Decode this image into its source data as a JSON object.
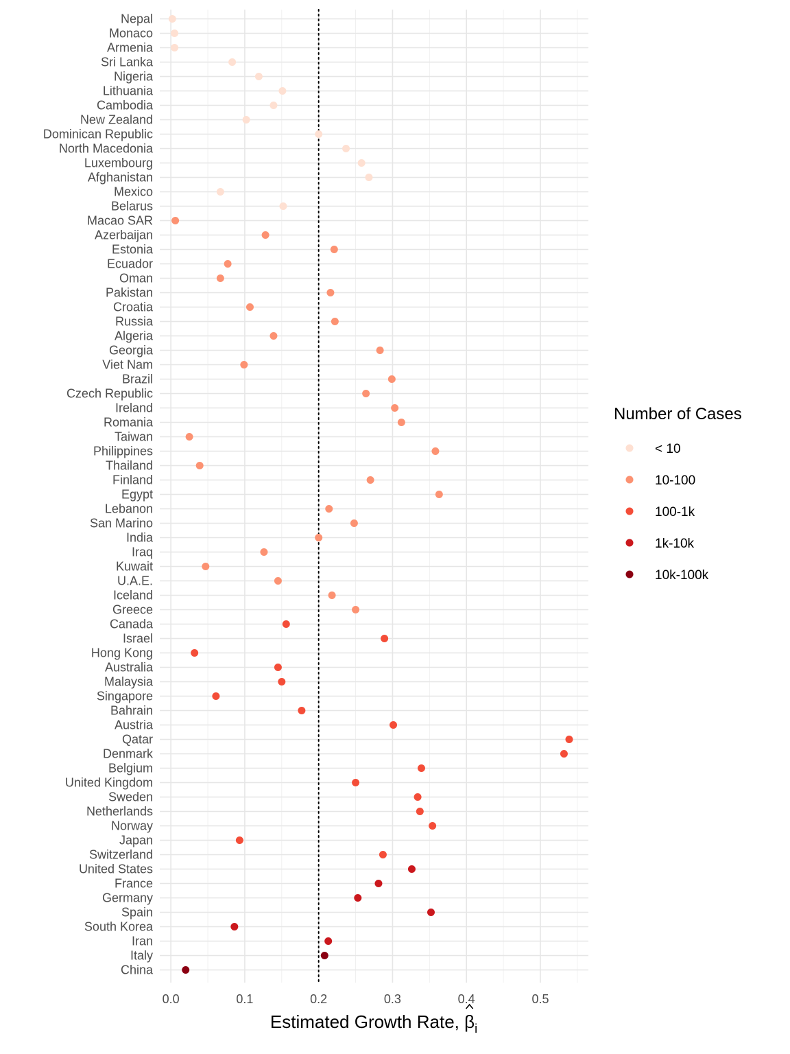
{
  "chart_data": {
    "type": "scatter",
    "xlabel": "Estimated Growth Rate, β̂i",
    "xlabel_main": "Estimated Growth Rate, ",
    "xlabel_symbol": "β",
    "xlabel_subscript": "i",
    "xlim": [
      -0.015,
      0.565
    ],
    "xticks": [
      0.0,
      0.1,
      0.2,
      0.3,
      0.4,
      0.5
    ],
    "xtick_labels": [
      "0.0",
      "0.1",
      "0.2",
      "0.3",
      "0.4",
      "0.5"
    ],
    "reference_line_x": 0.2,
    "reference_line_style": "dotted",
    "grid": true,
    "legend": {
      "title": "Number of Cases",
      "placement": "right",
      "entries": [
        {
          "label": "< 10",
          "color": "#fee0d2"
        },
        {
          "label": "10-100",
          "color": "#fc9272"
        },
        {
          "label": "100-1k",
          "color": "#f44d38"
        },
        {
          "label": "1k-10k",
          "color": "#cb181d"
        },
        {
          "label": "10k-100k",
          "color": "#8b0012"
        }
      ]
    },
    "points": [
      {
        "country": "Nepal",
        "x": 0.002,
        "cases": "< 10"
      },
      {
        "country": "Monaco",
        "x": 0.005,
        "cases": "< 10"
      },
      {
        "country": "Armenia",
        "x": 0.005,
        "cases": "< 10"
      },
      {
        "country": "Sri Lanka",
        "x": 0.083,
        "cases": "< 10"
      },
      {
        "country": "Nigeria",
        "x": 0.119,
        "cases": "< 10"
      },
      {
        "country": "Lithuania",
        "x": 0.151,
        "cases": "< 10"
      },
      {
        "country": "Cambodia",
        "x": 0.139,
        "cases": "< 10"
      },
      {
        "country": "New Zealand",
        "x": 0.102,
        "cases": "< 10"
      },
      {
        "country": "Dominican Republic",
        "x": 0.2,
        "cases": "< 10"
      },
      {
        "country": "North Macedonia",
        "x": 0.237,
        "cases": "< 10"
      },
      {
        "country": "Luxembourg",
        "x": 0.258,
        "cases": "< 10"
      },
      {
        "country": "Afghanistan",
        "x": 0.268,
        "cases": "< 10"
      },
      {
        "country": "Mexico",
        "x": 0.067,
        "cases": "< 10"
      },
      {
        "country": "Belarus",
        "x": 0.152,
        "cases": "< 10"
      },
      {
        "country": "Macao SAR",
        "x": 0.006,
        "cases": "10-100"
      },
      {
        "country": "Azerbaijan",
        "x": 0.128,
        "cases": "10-100"
      },
      {
        "country": "Estonia",
        "x": 0.221,
        "cases": "10-100"
      },
      {
        "country": "Ecuador",
        "x": 0.077,
        "cases": "10-100"
      },
      {
        "country": "Oman",
        "x": 0.067,
        "cases": "10-100"
      },
      {
        "country": "Pakistan",
        "x": 0.216,
        "cases": "10-100"
      },
      {
        "country": "Croatia",
        "x": 0.107,
        "cases": "10-100"
      },
      {
        "country": "Russia",
        "x": 0.222,
        "cases": "10-100"
      },
      {
        "country": "Algeria",
        "x": 0.139,
        "cases": "10-100"
      },
      {
        "country": "Georgia",
        "x": 0.283,
        "cases": "10-100"
      },
      {
        "country": "Viet Nam",
        "x": 0.099,
        "cases": "10-100"
      },
      {
        "country": "Brazil",
        "x": 0.299,
        "cases": "10-100"
      },
      {
        "country": "Czech Republic",
        "x": 0.264,
        "cases": "10-100"
      },
      {
        "country": "Ireland",
        "x": 0.303,
        "cases": "10-100"
      },
      {
        "country": "Romania",
        "x": 0.312,
        "cases": "10-100"
      },
      {
        "country": "Taiwan",
        "x": 0.025,
        "cases": "10-100"
      },
      {
        "country": "Philippines",
        "x": 0.358,
        "cases": "10-100"
      },
      {
        "country": "Thailand",
        "x": 0.039,
        "cases": "10-100"
      },
      {
        "country": "Finland",
        "x": 0.27,
        "cases": "10-100"
      },
      {
        "country": "Egypt",
        "x": 0.363,
        "cases": "10-100"
      },
      {
        "country": "Lebanon",
        "x": 0.214,
        "cases": "10-100"
      },
      {
        "country": "San Marino",
        "x": 0.248,
        "cases": "10-100"
      },
      {
        "country": "India",
        "x": 0.2,
        "cases": "10-100"
      },
      {
        "country": "Iraq",
        "x": 0.126,
        "cases": "10-100"
      },
      {
        "country": "Kuwait",
        "x": 0.047,
        "cases": "10-100"
      },
      {
        "country": "U.A.E.",
        "x": 0.145,
        "cases": "10-100"
      },
      {
        "country": "Iceland",
        "x": 0.218,
        "cases": "10-100"
      },
      {
        "country": "Greece",
        "x": 0.25,
        "cases": "10-100"
      },
      {
        "country": "Canada",
        "x": 0.156,
        "cases": "100-1k"
      },
      {
        "country": "Israel",
        "x": 0.289,
        "cases": "100-1k"
      },
      {
        "country": "Hong Kong",
        "x": 0.032,
        "cases": "100-1k"
      },
      {
        "country": "Australia",
        "x": 0.145,
        "cases": "100-1k"
      },
      {
        "country": "Malaysia",
        "x": 0.15,
        "cases": "100-1k"
      },
      {
        "country": "Singapore",
        "x": 0.061,
        "cases": "100-1k"
      },
      {
        "country": "Bahrain",
        "x": 0.177,
        "cases": "100-1k"
      },
      {
        "country": "Austria",
        "x": 0.301,
        "cases": "100-1k"
      },
      {
        "country": "Qatar",
        "x": 0.539,
        "cases": "100-1k"
      },
      {
        "country": "Denmark",
        "x": 0.532,
        "cases": "100-1k"
      },
      {
        "country": "Belgium",
        "x": 0.339,
        "cases": "100-1k"
      },
      {
        "country": "United Kingdom",
        "x": 0.25,
        "cases": "100-1k"
      },
      {
        "country": "Sweden",
        "x": 0.334,
        "cases": "100-1k"
      },
      {
        "country": "Netherlands",
        "x": 0.337,
        "cases": "100-1k"
      },
      {
        "country": "Norway",
        "x": 0.354,
        "cases": "100-1k"
      },
      {
        "country": "Japan",
        "x": 0.093,
        "cases": "100-1k"
      },
      {
        "country": "Switzerland",
        "x": 0.287,
        "cases": "100-1k"
      },
      {
        "country": "United States",
        "x": 0.326,
        "cases": "1k-10k"
      },
      {
        "country": "France",
        "x": 0.281,
        "cases": "1k-10k"
      },
      {
        "country": "Germany",
        "x": 0.253,
        "cases": "1k-10k"
      },
      {
        "country": "Spain",
        "x": 0.352,
        "cases": "1k-10k"
      },
      {
        "country": "South Korea",
        "x": 0.086,
        "cases": "1k-10k"
      },
      {
        "country": "Iran",
        "x": 0.213,
        "cases": "1k-10k"
      },
      {
        "country": "Italy",
        "x": 0.208,
        "cases": "10k-100k"
      },
      {
        "country": "China",
        "x": 0.02,
        "cases": "10k-100k"
      }
    ]
  }
}
